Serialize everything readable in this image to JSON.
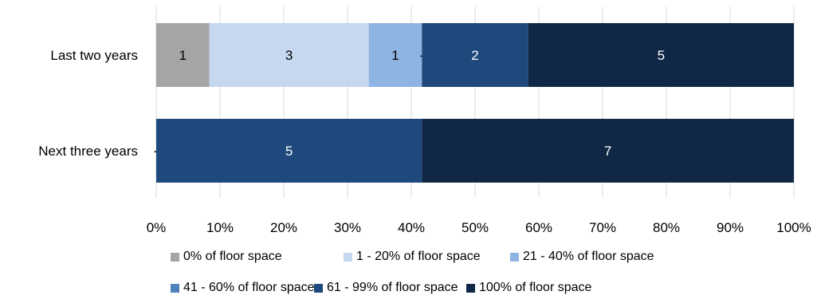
{
  "chart_data": {
    "type": "bar",
    "orientation": "horizontal",
    "stacked": "percent",
    "categories": [
      "Last two years",
      "Next three years"
    ],
    "series": [
      {
        "name": "0% of floor space",
        "color": "#a5a5a5",
        "label_color": "#000000",
        "values": [
          1,
          0
        ]
      },
      {
        "name": "1 - 20% of floor space",
        "color": "#c5d8f0",
        "label_color": "#000000",
        "values": [
          3,
          0
        ]
      },
      {
        "name": "21 - 40% of floor space",
        "color": "#8eb4e3",
        "label_color": "#000000",
        "values": [
          1,
          0
        ]
      },
      {
        "name": "41 - 60% of floor space",
        "color": "#4f81bd",
        "label_color": "#ffffff",
        "values": [
          0,
          0
        ]
      },
      {
        "name": "61 - 99% of floor space",
        "color": "#1f497d",
        "label_color": "#ffffff",
        "values": [
          2,
          5
        ]
      },
      {
        "name": "100% of floor space",
        "color": "#102845",
        "label_color": "#ffffff",
        "values": [
          5,
          7
        ]
      }
    ],
    "xlim": [
      0,
      100
    ],
    "x_ticks": [
      "0%",
      "10%",
      "20%",
      "30%",
      "40%",
      "50%",
      "60%",
      "70%",
      "80%",
      "90%",
      "100%"
    ],
    "grid": "vertical gridlines",
    "legend_position": "bottom",
    "zero_marker": "-"
  }
}
